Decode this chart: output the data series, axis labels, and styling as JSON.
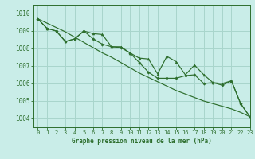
{
  "title": "Graphe pression niveau de la mer (hPa)",
  "xlim": [
    -0.5,
    23
  ],
  "ylim": [
    1003.5,
    1010.5
  ],
  "yticks": [
    1004,
    1005,
    1006,
    1007,
    1008,
    1009,
    1010
  ],
  "xticks": [
    0,
    1,
    2,
    3,
    4,
    5,
    6,
    7,
    8,
    9,
    10,
    11,
    12,
    13,
    14,
    15,
    16,
    17,
    18,
    19,
    20,
    21,
    22,
    23
  ],
  "background_color": "#c9ede8",
  "grid_color": "#a8d5cc",
  "line_color": "#2d6e2d",
  "series1_tri": [
    1009.7,
    1009.15,
    1009.0,
    1008.4,
    1008.55,
    1009.0,
    1008.85,
    1008.8,
    1008.1,
    1008.1,
    1007.75,
    1007.45,
    1007.4,
    1006.55,
    1007.55,
    1007.25,
    1006.5,
    1007.05,
    1006.5,
    1006.05,
    1006.0,
    1006.15,
    1004.85,
    1004.1
  ],
  "series2_dia": [
    1009.7,
    1009.15,
    1009.0,
    1008.4,
    1008.55,
    1009.0,
    1008.55,
    1008.25,
    1008.1,
    1008.05,
    1007.75,
    1007.2,
    1006.65,
    1006.3,
    1006.3,
    1006.3,
    1006.45,
    1006.5,
    1006.0,
    1006.05,
    1005.9,
    1006.15,
    1004.85,
    1004.1
  ],
  "trend": [
    1009.7,
    1009.45,
    1009.2,
    1008.95,
    1008.65,
    1008.35,
    1008.05,
    1007.75,
    1007.5,
    1007.2,
    1006.9,
    1006.6,
    1006.35,
    1006.1,
    1005.85,
    1005.6,
    1005.4,
    1005.2,
    1005.0,
    1004.85,
    1004.7,
    1004.55,
    1004.35,
    1004.1
  ]
}
